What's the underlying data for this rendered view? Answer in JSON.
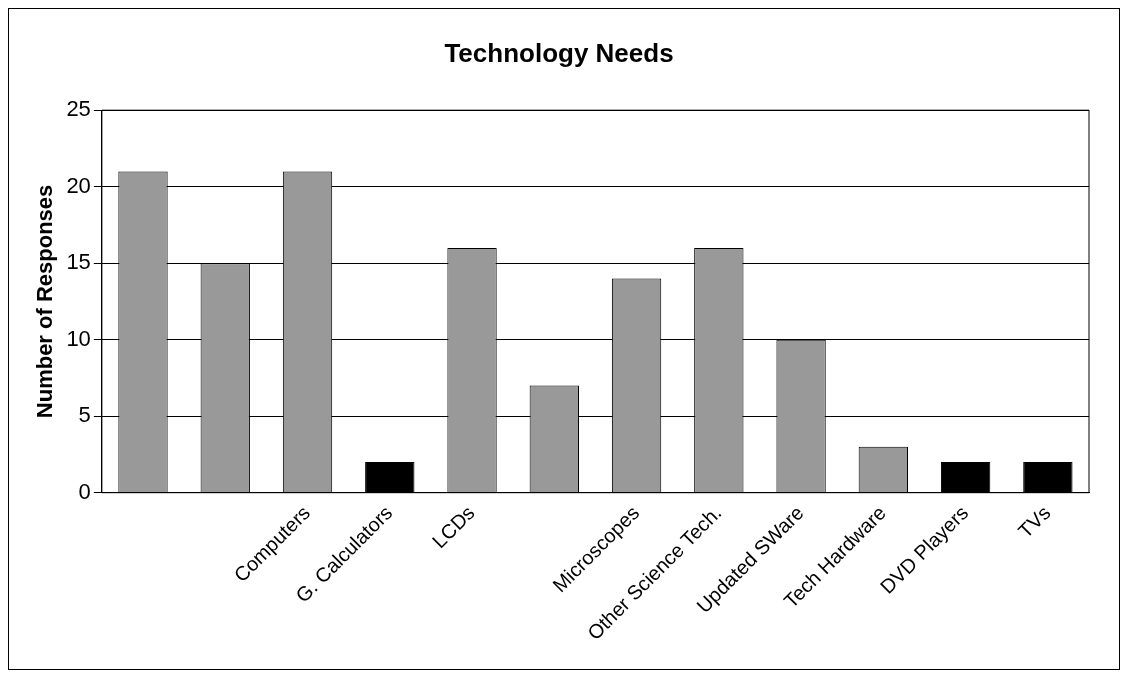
{
  "chart_data": {
    "type": "bar",
    "title": "Technology Needs",
    "ylabel": "Number of Responses",
    "categories": [
      null,
      null,
      "Computers",
      "G. Calculators",
      "LCDs",
      null,
      "Microscopes",
      "Other Science Tech.",
      "Updated SWare",
      "Tech Hardware",
      "DVD Players",
      "TVs"
    ],
    "values": [
      21,
      15,
      21,
      2,
      16,
      7,
      14,
      16,
      10,
      3,
      2,
      2
    ],
    "colors": [
      "#999999",
      "#999999",
      "#999999",
      "#000000",
      "#999999",
      "#999999",
      "#999999",
      "#999999",
      "#999999",
      "#999999",
      "#000000",
      "#000000"
    ],
    "ylim": [
      0,
      25
    ],
    "yticks": [
      0,
      5,
      10,
      15,
      20,
      25
    ],
    "grid": "y",
    "legend": false
  }
}
